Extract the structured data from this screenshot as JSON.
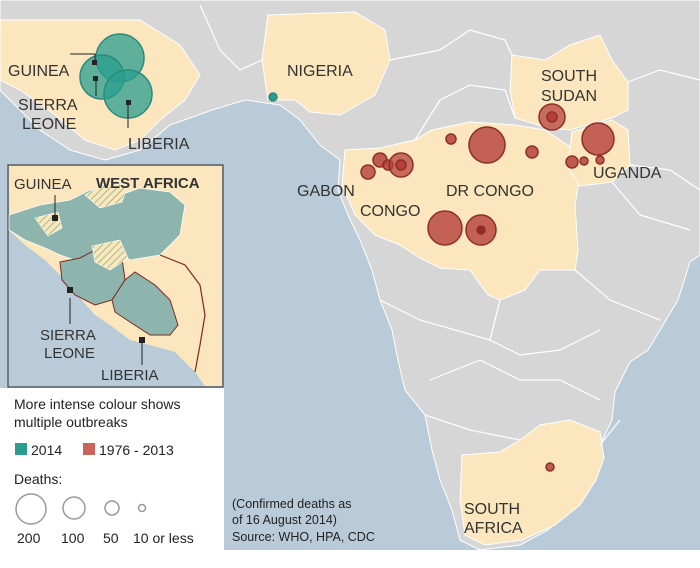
{
  "country_labels": {
    "guinea": "GUINEA",
    "sierra_leone_1": "SIERRA",
    "sierra_leone_2": "LEONE",
    "liberia": "LIBERIA",
    "nigeria": "NIGERIA",
    "gabon": "GABON",
    "congo": "CONGO",
    "dr_congo": "DR CONGO",
    "south_sudan_1": "SOUTH",
    "south_sudan_2": "SUDAN",
    "uganda": "UGANDA",
    "south_africa_1": "SOUTH",
    "south_africa_2": "AFRICA"
  },
  "inset": {
    "title": "WEST AFRICA",
    "guinea": "GUINEA",
    "sierra_leone_1": "SIERRA",
    "sierra_leone_2": "LEONE",
    "liberia": "LIBERIA"
  },
  "legend": {
    "intensity_line1": "More intense colour shows",
    "intensity_line2": "multiple outbreaks",
    "series_2014": "2014",
    "series_historic": "1976 - 2013",
    "deaths_title": "Deaths:",
    "size_200": "200",
    "size_100": "100",
    "size_50": "50",
    "size_10": "10 or less"
  },
  "source": {
    "line1": "(Confirmed deaths as",
    "line2": "of 16 August 2014)",
    "line3": "Source: WHO, HPA, CDC"
  },
  "colors": {
    "sea": "#b9cbd8",
    "land": "#d6d6d6",
    "highlight_land": "#fbe6bd",
    "color_2014": "#2a9d8f",
    "color_historic": "#b5413a"
  }
}
